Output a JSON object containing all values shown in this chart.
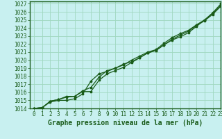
{
  "title": "Graphe pression niveau de la mer (hPa)",
  "bg_color": "#c8f0f0",
  "plot_bg_color": "#c8f0f0",
  "border_color": "#1a5c1a",
  "grid_color": "#a0d8c0",
  "line_color": "#1a5c1a",
  "marker_color": "#1a5c1a",
  "xlim": [
    -0.5,
    23
  ],
  "ylim": [
    1014,
    1027.3
  ],
  "xticks": [
    0,
    1,
    2,
    3,
    4,
    5,
    6,
    7,
    8,
    9,
    10,
    11,
    12,
    13,
    14,
    15,
    16,
    17,
    18,
    19,
    20,
    21,
    22,
    23
  ],
  "yticks": [
    1014,
    1015,
    1016,
    1017,
    1018,
    1019,
    1020,
    1021,
    1022,
    1023,
    1024,
    1025,
    1026,
    1027
  ],
  "line1_x": [
    0,
    1,
    2,
    3,
    4,
    5,
    6,
    7,
    8,
    9,
    10,
    11,
    12,
    13,
    14,
    15,
    16,
    17,
    18,
    19,
    20,
    21,
    22,
    23
  ],
  "line1_y": [
    1014.0,
    1014.1,
    1014.8,
    1015.0,
    1015.0,
    1015.2,
    1015.8,
    1017.4,
    1018.3,
    1018.6,
    1019.0,
    1019.5,
    1019.8,
    1020.3,
    1020.9,
    1021.2,
    1021.9,
    1022.5,
    1022.9,
    1023.4,
    1024.2,
    1025.0,
    1025.8,
    1026.8
  ],
  "line2_x": [
    0,
    1,
    2,
    3,
    4,
    5,
    6,
    7,
    8,
    9,
    10,
    11,
    12,
    13,
    14,
    15,
    16,
    17,
    18,
    19,
    20,
    21,
    22,
    23
  ],
  "line2_y": [
    1014.0,
    1014.1,
    1014.9,
    1015.1,
    1015.5,
    1015.5,
    1016.1,
    1016.1,
    1017.5,
    1018.3,
    1018.7,
    1019.1,
    1019.7,
    1020.3,
    1020.9,
    1021.2,
    1021.9,
    1022.6,
    1023.1,
    1023.6,
    1024.3,
    1024.9,
    1025.7,
    1026.7
  ],
  "line3_x": [
    0,
    1,
    2,
    3,
    4,
    5,
    6,
    7,
    8,
    9,
    10,
    11,
    12,
    13,
    14,
    15,
    16,
    17,
    18,
    19,
    20,
    21,
    22,
    23
  ],
  "line3_y": [
    1014.0,
    1014.1,
    1014.9,
    1015.1,
    1015.4,
    1015.5,
    1016.2,
    1016.6,
    1017.9,
    1018.7,
    1019.0,
    1019.4,
    1020.0,
    1020.5,
    1021.0,
    1021.3,
    1022.1,
    1022.8,
    1023.3,
    1023.7,
    1024.4,
    1025.0,
    1025.9,
    1027.0
  ],
  "title_fontsize": 7.0,
  "tick_fontsize": 5.5,
  "xlabel_fontsize": 7.0
}
